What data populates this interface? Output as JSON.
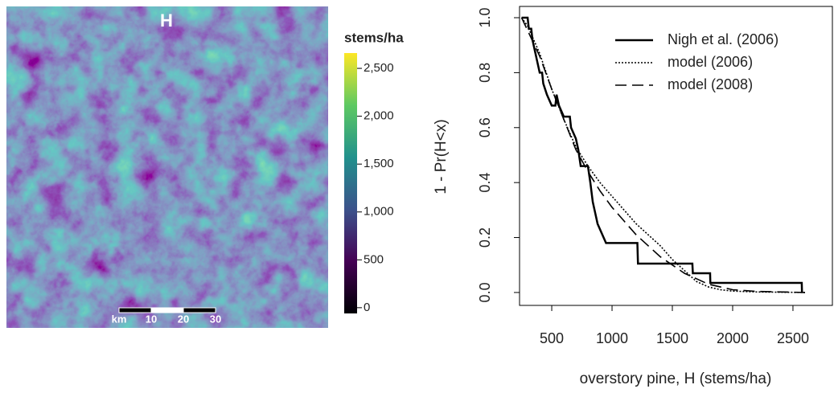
{
  "chart_data": [
    {
      "type": "raster",
      "title": "H",
      "colorbar_label": "stems/ha",
      "zlim": [
        -60,
        2660
      ],
      "zticks": [
        0,
        500,
        {
          "value": 1000,
          "label": "1,000"
        },
        {
          "value": 1500,
          "label": "1,500"
        },
        {
          "value": 2000,
          "label": "2,000"
        },
        {
          "value": 2500,
          "label": "2,500"
        }
      ],
      "colormap": [
        "#000004",
        "#440154",
        "#3b528b",
        "#21918c",
        "#5ec962",
        "#fde725"
      ],
      "scalebar": {
        "unit": "km",
        "labels": [
          10,
          20,
          30
        ]
      }
    },
    {
      "type": "line",
      "xlabel": "overstory pine, H (stems/ha)",
      "ylabel": "1 - Pr(H<x)",
      "xlim": [
        233,
        2827
      ],
      "ylim": [
        -0.047,
        1.041
      ],
      "xticks": [
        500,
        1000,
        1500,
        2000,
        2500
      ],
      "yticks": [
        0.0,
        0.2,
        0.4,
        0.6,
        0.8,
        1.0
      ],
      "legend": "top-right",
      "series": [
        {
          "name": "Nigh et al. (2006)",
          "color": "#000000",
          "linestyle": "solid",
          "x": [
            250,
            300,
            310,
            330,
            340,
            360,
            380,
            400,
            420,
            430,
            460,
            500,
            530,
            540,
            560,
            600,
            650,
            660,
            700,
            720,
            740,
            800,
            820,
            840,
            860,
            880,
            950,
            1210,
            1215,
            1666,
            1670,
            1813,
            1815,
            2573,
            2575
          ],
          "values": [
            1,
            1,
            0.96,
            0.96,
            0.92,
            0.88,
            0.84,
            0.8,
            0.8,
            0.76,
            0.72,
            0.68,
            0.68,
            0.72,
            0.68,
            0.64,
            0.64,
            0.6,
            0.56,
            0.52,
            0.46,
            0.46,
            0.4,
            0.33,
            0.29,
            0.25,
            0.18,
            0.18,
            0.105,
            0.105,
            0.07,
            0.07,
            0.035,
            0.035,
            0.0
          ]
        },
        {
          "name": "model (2006)",
          "color": "#000000",
          "linestyle": "dotted",
          "x": [
            250,
            300,
            400,
            500,
            600,
            700,
            800,
            900,
            1000,
            1100,
            1200,
            1300,
            1400,
            1500,
            1600,
            1700,
            1800,
            1900,
            2000,
            2200,
            2400,
            2600
          ],
          "values": [
            1,
            0.97,
            0.87,
            0.74,
            0.63,
            0.53,
            0.46,
            0.4,
            0.35,
            0.3,
            0.25,
            0.21,
            0.17,
            0.12,
            0.08,
            0.04,
            0.02,
            0.01,
            0.005,
            0.002,
            0.001,
            0
          ]
        },
        {
          "name": "model (2008)",
          "color": "#000000",
          "linestyle": "dashed",
          "x": [
            250,
            400,
            500,
            600,
            700,
            800,
            900,
            1000,
            1100,
            1200,
            1300,
            1400,
            1500,
            1600,
            1700,
            1800,
            1900,
            2000,
            2200,
            2600
          ],
          "values": [
            1,
            0.86,
            0.74,
            0.63,
            0.52,
            0.44,
            0.37,
            0.31,
            0.26,
            0.21,
            0.17,
            0.13,
            0.1,
            0.07,
            0.05,
            0.03,
            0.02,
            0.01,
            0.004,
            0
          ]
        }
      ]
    }
  ]
}
